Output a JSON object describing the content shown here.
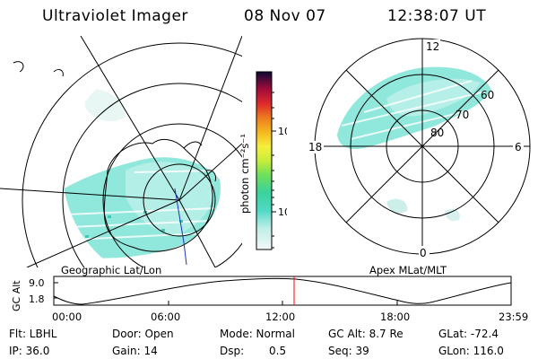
{
  "header": {
    "title": "Ultraviolet Imager",
    "date": "08 Nov 07",
    "time": "12:38:07 UT"
  },
  "left_panel": {
    "caption": "Geographic Lat/Lon"
  },
  "right_panel": {
    "caption": "Apex MLat/MLT",
    "mlt_labels": {
      "top": "12",
      "bottom": "0",
      "left": "18",
      "right": "6"
    },
    "lat_labels": [
      "60",
      "70",
      "80"
    ]
  },
  "colorbar": {
    "unit_label": "photon cm⁻²s⁻¹",
    "ticks": [
      "100",
      "10"
    ],
    "scale": "log",
    "colors": [
      "#e8f4f4",
      "#a8e8e0",
      "#40d8c0",
      "#20c0d0",
      "#60e060",
      "#c8f040",
      "#f8f040",
      "#f8c020",
      "#f08020",
      "#e03020",
      "#b00020",
      "#600030",
      "#101030"
    ]
  },
  "timeline": {
    "ylabel": "GC Alt",
    "yticks": [
      "9.0",
      "1.8"
    ],
    "xticks": [
      "00:00",
      "06:00",
      "12:00",
      "18:00",
      "23:59"
    ],
    "marker_time": "12:38",
    "marker_color": "#ff0000"
  },
  "info": {
    "flt": "Flt: LBHL",
    "ip": "IP: 36.0",
    "door": "Door: Open",
    "gain": "Gain: 14",
    "mode": "Mode: Normal",
    "dsp_label": "Dsp:",
    "dsp_value": "0.5",
    "gc_alt": "GC Alt: 8.7 Re",
    "seq": "Seq: 39",
    "glat": "GLat: -72.4",
    "glon": "GLon: 116.0"
  }
}
